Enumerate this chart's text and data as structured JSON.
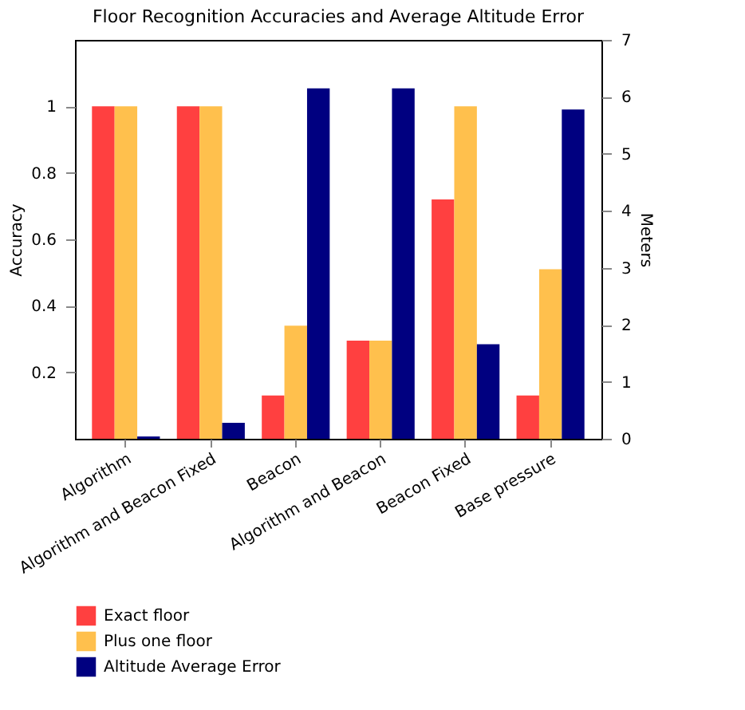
{
  "chart_data": {
    "type": "bar",
    "title": "Floor Recognition Accuracies and Average Altitude Error",
    "categories": [
      "Algorithm",
      "Algorithm and Beacon Fixed",
      "Beacon",
      "Algorithm and Beacon",
      "Beacon Fixed",
      "Base pressure"
    ],
    "series": [
      {
        "name": "Exact floor",
        "color": "#ff4040",
        "values": [
          1,
          1,
          0.13,
          0.295,
          0.72,
          0.13
        ]
      },
      {
        "name": "Plus one floor",
        "color": "#ffc04d",
        "values": [
          1,
          1,
          0.34,
          0.295,
          1,
          0.51
        ]
      },
      {
        "name": "Altitude Average Error",
        "color": "#000080",
        "axis": "y2",
        "values": [
          0.04,
          0.28,
          6.15,
          6.15,
          1.66,
          5.78
        ]
      }
    ],
    "ylabel": "Accuracy",
    "y2label": "Meters",
    "ylim": [
      0,
      1.2
    ],
    "yticks": [
      0.2,
      0.4,
      0.6,
      0.8,
      1
    ],
    "y2lim": [
      0,
      7
    ],
    "y2ticks": [
      0,
      1,
      2,
      3,
      4,
      5,
      6,
      7
    ],
    "grid": false,
    "legend": "bottom"
  }
}
